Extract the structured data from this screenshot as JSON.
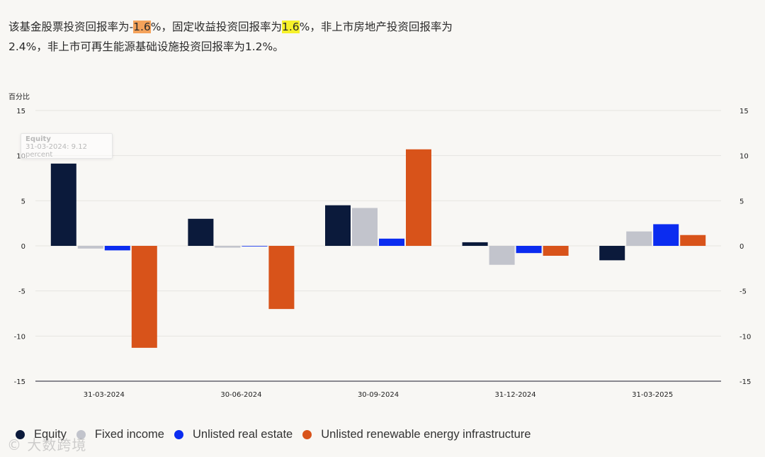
{
  "summary": {
    "part1": "该基金股票投资回报率为-",
    "equity_value": "1.6",
    "part2": "%，固定收益投资回报率为",
    "fixed_value": "1.6",
    "part3": "%，非上市房地产投资回报率为2.4%，非上市可再生能源基础设施投资回报率为1.2%。"
  },
  "tooltip": {
    "title": "Equity",
    "text": "31-03-2024: 9.12 percent"
  },
  "watermark": "© 大数跨境",
  "chart_data": {
    "type": "bar",
    "y_unit_label": "百分比",
    "categories": [
      "31-03-2024",
      "30-06-2024",
      "30-09-2024",
      "31-12-2024",
      "31-03-2025"
    ],
    "ylim": [
      -15,
      15
    ],
    "yticks": [
      15,
      10,
      5,
      0,
      -5,
      -10,
      -15
    ],
    "grid": true,
    "legend_position": "bottom-left",
    "series": [
      {
        "name": "Equity",
        "color": "#0b1a3b",
        "values": [
          9.12,
          3.0,
          4.5,
          0.4,
          -1.6
        ]
      },
      {
        "name": "Fixed income",
        "color": "#c2c4cc",
        "values": [
          -0.3,
          -0.2,
          4.2,
          -2.1,
          1.6
        ]
      },
      {
        "name": "Unlisted real estate",
        "color": "#0b2cf0",
        "values": [
          -0.5,
          0.0,
          0.8,
          -0.8,
          2.4
        ]
      },
      {
        "name": "Unlisted renewable energy infrastructure",
        "color": "#d8531a",
        "values": [
          -11.3,
          -7.0,
          10.7,
          -1.1,
          1.2
        ]
      }
    ]
  }
}
